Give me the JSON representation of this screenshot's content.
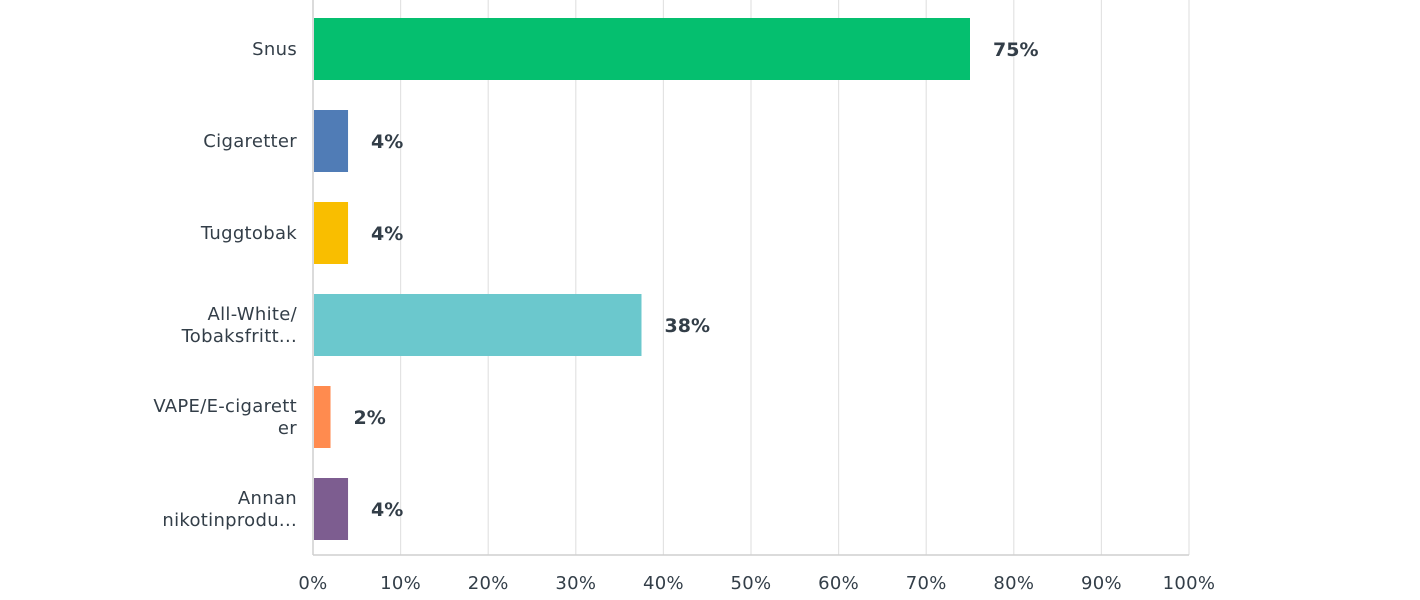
{
  "chart_data": {
    "type": "bar",
    "orientation": "horizontal",
    "categories": [
      [
        "Snus"
      ],
      [
        "Cigaretter"
      ],
      [
        "Tuggtobak"
      ],
      [
        "All-White/",
        "Tobaksfritt..."
      ],
      [
        "VAPE/E-cigarett",
        "er"
      ],
      [
        "Annan",
        "nikotinprodu..."
      ]
    ],
    "values": [
      75,
      4,
      4,
      37.5,
      2,
      4
    ],
    "value_labels": [
      "75%",
      "4%",
      "4%",
      "38%",
      "2%",
      "4%"
    ],
    "colors": [
      "#05bf6f",
      "#507cb6",
      "#f9be00",
      "#6bc8cd",
      "#ff8b4f",
      "#7d5d90"
    ],
    "xlim": [
      0,
      100
    ],
    "x_ticks": [
      "0%",
      "10%",
      "20%",
      "30%",
      "40%",
      "50%",
      "60%",
      "70%",
      "80%",
      "90%",
      "100%"
    ],
    "grid": true,
    "legend": "none"
  }
}
